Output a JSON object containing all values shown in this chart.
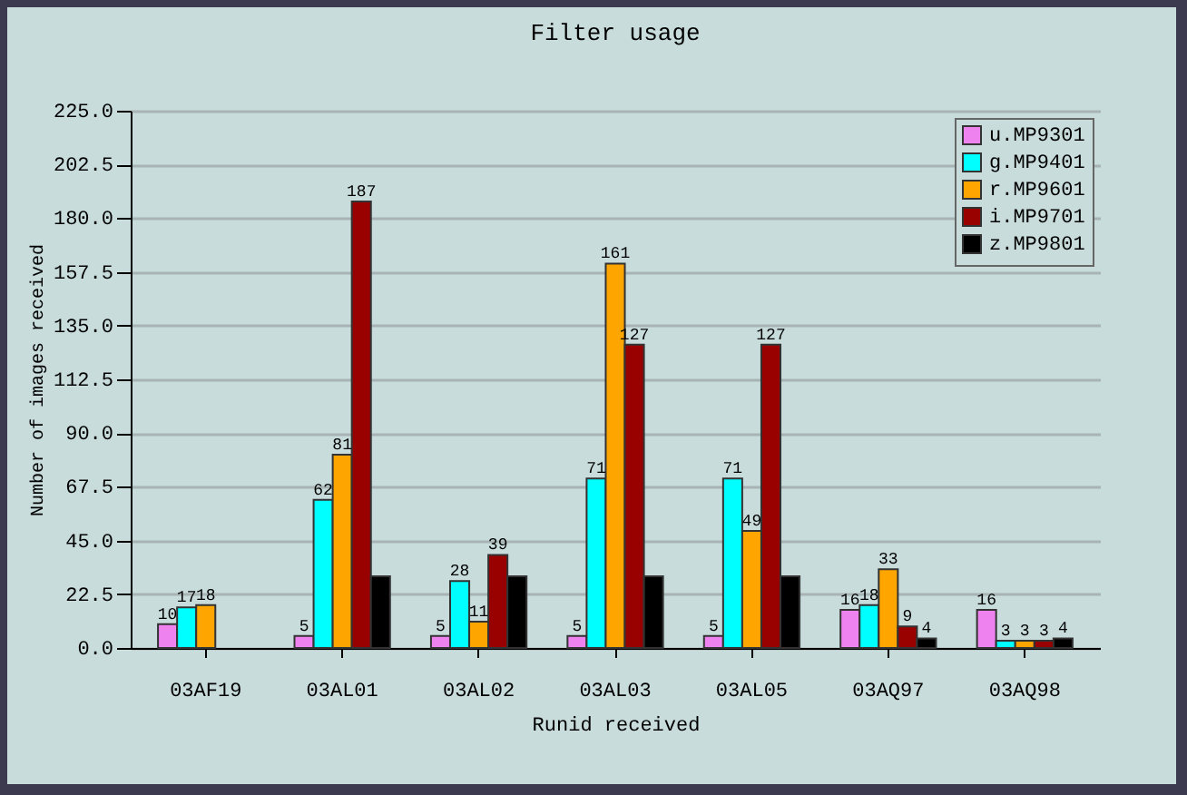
{
  "chart_data": {
    "type": "bar",
    "title": "Filter usage",
    "xlabel": "Runid received",
    "ylabel": "Number of images received",
    "categories": [
      "03AF19",
      "03AL01",
      "03AL02",
      "03AL03",
      "03AL05",
      "03AQ97",
      "03AQ98"
    ],
    "series": [
      {
        "name": "u.MP9301",
        "color": "#ee82ee",
        "values": [
          10,
          5,
          5,
          5,
          5,
          16,
          16
        ],
        "value_labels": [
          "10",
          "5",
          "5",
          "5",
          "5",
          "16",
          "16"
        ]
      },
      {
        "name": "g.MP9401",
        "color": "#00ffff",
        "values": [
          17,
          62,
          28,
          71,
          71,
          18,
          3
        ],
        "value_labels": [
          "17",
          "62",
          "28",
          "71",
          "71",
          "18",
          "3"
        ]
      },
      {
        "name": "r.MP9601",
        "color": "#ffa500",
        "values": [
          18,
          81,
          11,
          161,
          49,
          33,
          3
        ],
        "value_labels": [
          "18",
          "81",
          "11",
          "161",
          "49",
          "33",
          "3"
        ]
      },
      {
        "name": "i.MP9701",
        "color": "#990000",
        "values": [
          null,
          187,
          39,
          127,
          127,
          9,
          3
        ],
        "value_labels": [
          null,
          "187",
          "39",
          "127",
          "127",
          "9",
          "3"
        ]
      },
      {
        "name": "z.MP9801",
        "color": "#000000",
        "values": [
          null,
          30,
          30,
          30,
          30,
          4,
          4
        ],
        "value_labels": [
          null,
          null,
          null,
          null,
          null,
          "4",
          "4"
        ]
      }
    ],
    "ylim": [
      0,
      225
    ],
    "yticks": [
      {
        "value": 0,
        "label": "0.0"
      },
      {
        "value": 22.5,
        "label": "22.5"
      },
      {
        "value": 45,
        "label": "45.0"
      },
      {
        "value": 67.5,
        "label": "67.5"
      },
      {
        "value": 90,
        "label": "90.0"
      },
      {
        "value": 112.5,
        "label": "112.5"
      },
      {
        "value": 135,
        "label": "135.0"
      },
      {
        "value": 157.5,
        "label": "157.5"
      },
      {
        "value": 180,
        "label": "180.0"
      },
      {
        "value": 202.5,
        "label": "202.5"
      },
      {
        "value": 225,
        "label": "225.0"
      }
    ],
    "grid": "y",
    "legend": "top right"
  }
}
